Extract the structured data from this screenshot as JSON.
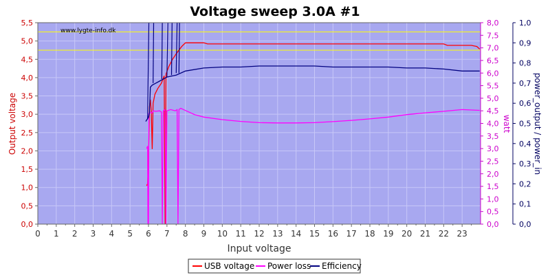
{
  "chart_data": {
    "type": "line",
    "title": "Voltage sweep 3.0A #1",
    "watermark": "www.lygte-info.dk",
    "xlabel": "Input voltage",
    "ylabel_left": "Output voltage",
    "ylabel_right1": "watt",
    "ylabel_right2": "power_output / power_in",
    "xlim": [
      0,
      24
    ],
    "ylim_left": [
      0,
      5.5
    ],
    "ylim_right1": [
      0,
      8
    ],
    "ylim_right2": [
      0,
      1
    ],
    "x_ticks": [
      "0",
      "1",
      "2",
      "3",
      "4",
      "5",
      "6",
      "7",
      "8",
      "9",
      "10",
      "11",
      "12",
      "13",
      "14",
      "15",
      "16",
      "17",
      "18",
      "19",
      "20",
      "21",
      "22",
      "23"
    ],
    "y_left_ticks": [
      "0,0",
      "0,5",
      "1,0",
      "1,5",
      "2,0",
      "2,5",
      "3,0",
      "3,5",
      "4,0",
      "4,5",
      "5,0",
      "5,5"
    ],
    "y_right1_ticks": [
      "0,0",
      "0,5",
      "1,0",
      "1,5",
      "2,0",
      "2,5",
      "3,0",
      "3,5",
      "4,0",
      "4,5",
      "5,0",
      "5,5",
      "6,0",
      "6,5",
      "7,0",
      "7,5",
      "8,0"
    ],
    "y_right2_ticks": [
      "0,0",
      "0,1",
      "0,2",
      "0,3",
      "0,4",
      "0,5",
      "0,6",
      "0,7",
      "0,8",
      "0,9",
      "1,0"
    ],
    "reference_lines_left": [
      4.75,
      5.25
    ],
    "grid": true,
    "legend_position": "bottom-center",
    "colors": {
      "plot_bg": "#a8a8f0",
      "grid": "#c8c8f8",
      "usb_voltage": "#ff0000",
      "power_loss": "#ff00ff",
      "efficiency": "#000080",
      "reference": "#ffff00",
      "left_axis": "#cc0000",
      "right1_axis": "#cc00cc",
      "right2_axis": "#000060"
    },
    "series": [
      {
        "name": "USB voltage",
        "axis": "left",
        "points": [
          [
            5.9,
            1.05
          ],
          [
            5.95,
            1.1
          ],
          [
            6.0,
            1.7
          ],
          [
            6.05,
            3.2
          ],
          [
            6.1,
            3.4
          ],
          [
            6.15,
            3.1
          ],
          [
            6.2,
            2.05
          ],
          [
            6.25,
            3.3
          ],
          [
            6.35,
            3.55
          ],
          [
            6.5,
            3.7
          ],
          [
            6.7,
            3.85
          ],
          [
            6.85,
            4.05
          ],
          [
            6.9,
            0
          ],
          [
            6.95,
            4.1
          ],
          [
            7.1,
            4.3
          ],
          [
            7.3,
            4.5
          ],
          [
            7.5,
            4.65
          ],
          [
            7.8,
            4.85
          ],
          [
            8.0,
            4.95
          ],
          [
            9.0,
            4.95
          ],
          [
            9.2,
            4.92
          ],
          [
            12,
            4.92
          ],
          [
            15,
            4.92
          ],
          [
            18,
            4.92
          ],
          [
            22,
            4.92
          ],
          [
            22.2,
            4.88
          ],
          [
            23.5,
            4.88
          ],
          [
            23.8,
            4.85
          ],
          [
            23.95,
            4.78
          ]
        ]
      },
      {
        "name": "Power loss",
        "axis": "right1",
        "points": [
          [
            5.9,
            3.0
          ],
          [
            5.95,
            3.1
          ],
          [
            5.97,
            0
          ],
          [
            6.0,
            0
          ],
          [
            6.02,
            4.4
          ],
          [
            6.1,
            4.45
          ],
          [
            6.2,
            4.4
          ],
          [
            6.25,
            4.5
          ],
          [
            6.4,
            4.48
          ],
          [
            6.6,
            4.5
          ],
          [
            6.7,
            4.45
          ],
          [
            6.75,
            0
          ],
          [
            6.8,
            4.5
          ],
          [
            6.9,
            4.55
          ],
          [
            6.95,
            0
          ],
          [
            7.0,
            4.5
          ],
          [
            7.2,
            4.55
          ],
          [
            7.45,
            4.5
          ],
          [
            7.55,
            4.55
          ],
          [
            7.6,
            0
          ],
          [
            7.65,
            4.55
          ],
          [
            7.75,
            4.6
          ],
          [
            7.9,
            4.55
          ],
          [
            8.5,
            4.35
          ],
          [
            9,
            4.25
          ],
          [
            10,
            4.15
          ],
          [
            11,
            4.08
          ],
          [
            12,
            4.03
          ],
          [
            13,
            4.02
          ],
          [
            14,
            4.02
          ],
          [
            15,
            4.03
          ],
          [
            16,
            4.07
          ],
          [
            17,
            4.12
          ],
          [
            18,
            4.18
          ],
          [
            19,
            4.25
          ],
          [
            20,
            4.35
          ],
          [
            21,
            4.42
          ],
          [
            22,
            4.48
          ],
          [
            23,
            4.55
          ],
          [
            23.95,
            4.52
          ]
        ]
      },
      {
        "name": "Efficiency",
        "axis": "right2",
        "points": [
          [
            5.85,
            0.51
          ],
          [
            5.92,
            0.52
          ],
          [
            6.0,
            0.53
          ],
          [
            6.05,
            0.55
          ],
          [
            6.1,
            0.68
          ],
          [
            6.2,
            0.69
          ],
          [
            6.4,
            0.7
          ],
          [
            6.6,
            0.71
          ],
          [
            6.8,
            0.72
          ],
          [
            7.0,
            0.73
          ],
          [
            7.5,
            0.74
          ],
          [
            8.0,
            0.76
          ],
          [
            9,
            0.775
          ],
          [
            10,
            0.78
          ],
          [
            11,
            0.78
          ],
          [
            12,
            0.785
          ],
          [
            13,
            0.785
          ],
          [
            14,
            0.785
          ],
          [
            15,
            0.785
          ],
          [
            16,
            0.78
          ],
          [
            17,
            0.78
          ],
          [
            18,
            0.78
          ],
          [
            19,
            0.78
          ],
          [
            20,
            0.775
          ],
          [
            21,
            0.775
          ],
          [
            22,
            0.77
          ],
          [
            23,
            0.76
          ],
          [
            23.95,
            0.76
          ]
        ]
      }
    ],
    "spikes": [
      {
        "series": "Efficiency",
        "axis": "right2",
        "segments": [
          [
            5.95,
            0.52,
            6.02,
            1.0
          ],
          [
            6.25,
            0.7,
            6.28,
            1.0
          ],
          [
            6.72,
            0.72,
            6.75,
            1.0
          ],
          [
            7.0,
            0.73,
            7.05,
            1.0
          ],
          [
            7.25,
            0.74,
            7.28,
            1.0
          ],
          [
            7.5,
            0.75,
            7.55,
            1.0
          ],
          [
            7.65,
            0.75,
            7.68,
            1.0
          ]
        ]
      }
    ],
    "legend": [
      "USB voltage",
      "Power loss",
      "Efficiency"
    ]
  }
}
